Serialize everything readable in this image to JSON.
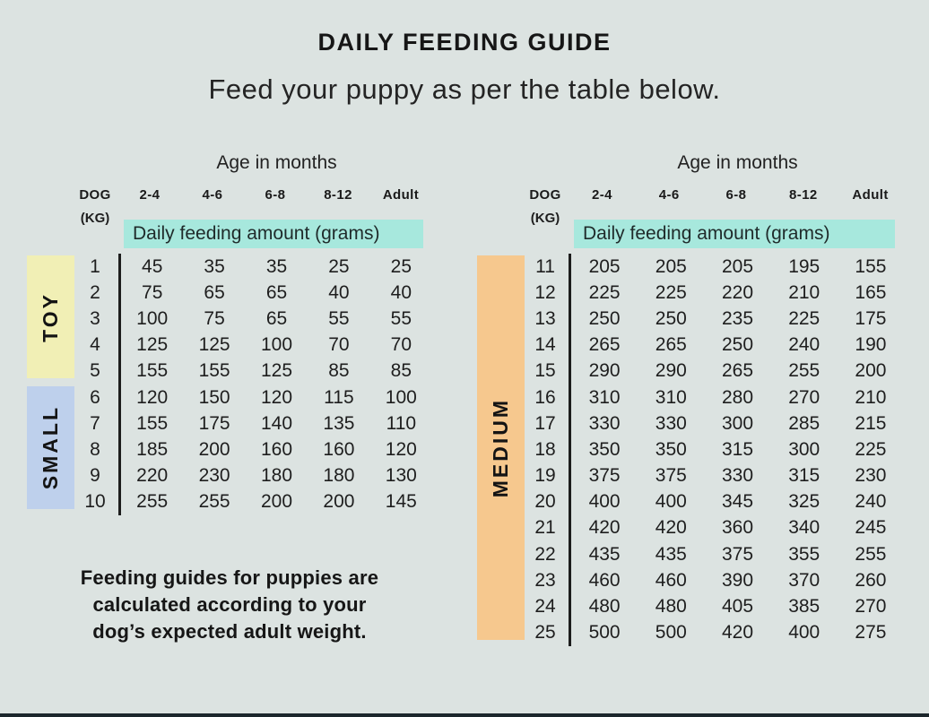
{
  "header": {
    "title": "DAILY FEEDING GUIDE",
    "subtitle": "Feed your puppy as per the table below."
  },
  "footer": {
    "note": "Feeding guides for puppies are\ncalculated according to your\ndog’s expected adult weight."
  },
  "colors": {
    "background": "#dce3e1",
    "band_teal": "#a7e8dd",
    "toy_yellow": "#f1efb5",
    "small_blue": "#bed0ec",
    "medium_orange": "#f6c88e",
    "text": "#1e1e1e"
  },
  "chart_data": [
    {
      "type": "table",
      "age_header": "Age in months",
      "dog_label": "DOG",
      "kg_label": "(KG)",
      "columns": [
        "2-4",
        "4-6",
        "6-8",
        "8-12",
        "Adult"
      ],
      "band_label": "Daily feeding amount (grams)",
      "groups": [
        {
          "name": "TOY",
          "color": "#f1efb5",
          "rows": [
            {
              "kg": 1,
              "values": [
                45,
                35,
                35,
                25,
                25
              ]
            },
            {
              "kg": 2,
              "values": [
                75,
                65,
                65,
                40,
                40
              ]
            },
            {
              "kg": 3,
              "values": [
                100,
                75,
                65,
                55,
                55
              ]
            },
            {
              "kg": 4,
              "values": [
                125,
                125,
                100,
                70,
                70
              ]
            },
            {
              "kg": 5,
              "values": [
                155,
                155,
                125,
                85,
                85
              ]
            }
          ]
        },
        {
          "name": "SMALL",
          "color": "#bed0ec",
          "rows": [
            {
              "kg": 6,
              "values": [
                120,
                150,
                120,
                115,
                100
              ]
            },
            {
              "kg": 7,
              "values": [
                155,
                175,
                140,
                135,
                110
              ]
            },
            {
              "kg": 8,
              "values": [
                185,
                200,
                160,
                160,
                120
              ]
            },
            {
              "kg": 9,
              "values": [
                220,
                230,
                180,
                180,
                130
              ]
            },
            {
              "kg": 10,
              "values": [
                255,
                255,
                200,
                200,
                145
              ]
            }
          ]
        }
      ]
    },
    {
      "type": "table",
      "age_header": "Age in months",
      "dog_label": "DOG",
      "kg_label": "(KG)",
      "columns": [
        "2-4",
        "4-6",
        "6-8",
        "8-12",
        "Adult"
      ],
      "band_label": "Daily feeding amount (grams)",
      "groups": [
        {
          "name": "MEDIUM",
          "color": "#f6c88e",
          "rows": [
            {
              "kg": 11,
              "values": [
                205,
                205,
                205,
                195,
                155
              ]
            },
            {
              "kg": 12,
              "values": [
                225,
                225,
                220,
                210,
                165
              ]
            },
            {
              "kg": 13,
              "values": [
                250,
                250,
                235,
                225,
                175
              ]
            },
            {
              "kg": 14,
              "values": [
                265,
                265,
                250,
                240,
                190
              ]
            },
            {
              "kg": 15,
              "values": [
                290,
                290,
                265,
                255,
                200
              ]
            },
            {
              "kg": 16,
              "values": [
                310,
                310,
                280,
                270,
                210
              ]
            },
            {
              "kg": 17,
              "values": [
                330,
                330,
                300,
                285,
                215
              ]
            },
            {
              "kg": 18,
              "values": [
                350,
                350,
                315,
                300,
                225
              ]
            },
            {
              "kg": 19,
              "values": [
                375,
                375,
                330,
                315,
                230
              ]
            },
            {
              "kg": 20,
              "values": [
                400,
                400,
                345,
                325,
                240
              ]
            },
            {
              "kg": 21,
              "values": [
                420,
                420,
                360,
                340,
                245
              ]
            },
            {
              "kg": 22,
              "values": [
                435,
                435,
                375,
                355,
                255
              ]
            },
            {
              "kg": 23,
              "values": [
                460,
                460,
                390,
                370,
                260
              ]
            },
            {
              "kg": 24,
              "values": [
                480,
                480,
                405,
                385,
                270
              ]
            },
            {
              "kg": 25,
              "values": [
                500,
                500,
                420,
                400,
                275
              ]
            }
          ]
        }
      ]
    }
  ]
}
